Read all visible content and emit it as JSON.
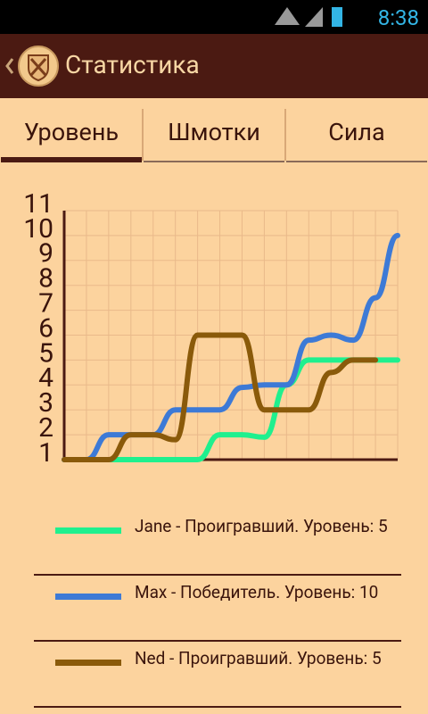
{
  "status_bar": {
    "time": "8:38"
  },
  "app_bar": {
    "title": "Статистика"
  },
  "tabs": [
    "Уровень",
    "Шмотки",
    "Сила"
  ],
  "chart_data": {
    "type": "line",
    "x": [
      0,
      1,
      2,
      3,
      4,
      5,
      6,
      7,
      8,
      9,
      10,
      11,
      12,
      13,
      14,
      15
    ],
    "xlim": [
      0,
      15
    ],
    "ylim": [
      1,
      11
    ],
    "yticks": [
      1,
      2,
      3,
      4,
      5,
      6,
      7,
      8,
      9,
      10,
      11
    ],
    "grid": true,
    "series": [
      {
        "name": "Jane - Проигравший. Уровень: 5",
        "color": "#1ff08e",
        "values": [
          1,
          1,
          1,
          1,
          1,
          1,
          1,
          2,
          2,
          1.9,
          4,
          5,
          5,
          5,
          5,
          5
        ]
      },
      {
        "name": "Max - Победитель. Уровень: 10",
        "color": "#3d7ad6",
        "values": [
          1,
          1,
          2,
          2,
          2,
          3,
          3,
          3,
          3.9,
          4,
          4,
          5.8,
          6,
          5.8,
          7.5,
          10
        ]
      },
      {
        "name": "Ned - Проигравший. Уровень: 5",
        "color": "#8a5a0a",
        "values": [
          1,
          1,
          1,
          2,
          2,
          1.8,
          6,
          6,
          6,
          3,
          3,
          3,
          4.5,
          5,
          5,
          null
        ]
      }
    ]
  }
}
